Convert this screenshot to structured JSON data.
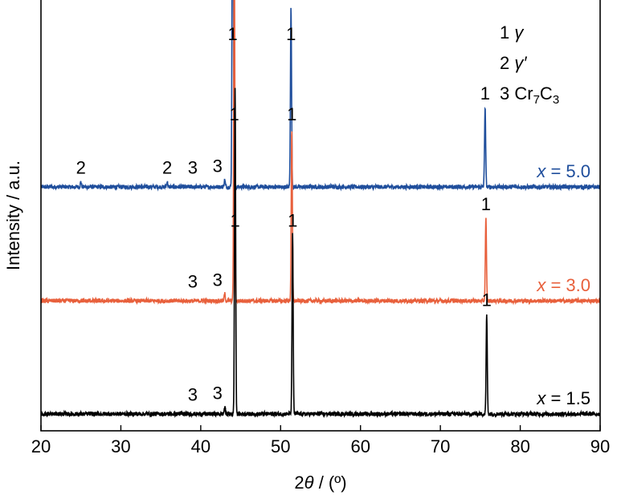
{
  "chart_data": {
    "type": "line",
    "xlabel": {
      "prefix": "2",
      "symbol": "θ",
      "suffix": " / (º)"
    },
    "ylabel": "Intensity / a.u.",
    "xlim": [
      20,
      90
    ],
    "xticks": [
      "20",
      "30",
      "40",
      "50",
      "60",
      "70",
      "80",
      "90"
    ],
    "legend": {
      "placement": "top-right",
      "entries": [
        {
          "num": "1",
          "sym": "γ",
          "prime": ""
        },
        {
          "num": "2",
          "sym": "γ",
          "prime": "′"
        },
        {
          "num": "3",
          "chem": [
            "Cr",
            "7",
            "C",
            "3"
          ]
        }
      ]
    },
    "series": [
      {
        "label": {
          "var": "x",
          "rest": " = 5.0"
        },
        "color": "#1f4e9c",
        "peaks": [
          {
            "x": 44.0,
            "h": 1.3
          },
          {
            "x": 51.3,
            "h": 0.52
          },
          {
            "x": 75.6,
            "h": 0.23
          },
          {
            "x": 25.0,
            "h": 0.015
          },
          {
            "x": 35.8,
            "h": 0.015
          },
          {
            "x": 43.0,
            "h": 0.02
          }
        ],
        "annotations": [
          {
            "x": 44.0,
            "text": "1",
            "peak_h": 1.18
          },
          {
            "x": 51.3,
            "text": "1",
            "peak_h": 0.52
          },
          {
            "x": 75.6,
            "text": "1",
            "peak_h": 0.23
          },
          {
            "x": 25.0,
            "text": "2",
            "peak_h": 0.015
          },
          {
            "x": 35.8,
            "text": "2",
            "peak_h": 0.015
          },
          {
            "x": 39.0,
            "text": "3",
            "peak_h": 0.015
          },
          {
            "x": 42.7,
            "text": "3",
            "peak_h": 0.02
          }
        ]
      },
      {
        "label": {
          "var": "x",
          "rest": " = 3.0"
        },
        "color": "#e8603c",
        "peaks": [
          {
            "x": 44.2,
            "h": 1.05
          },
          {
            "x": 51.4,
            "h": 0.5
          },
          {
            "x": 75.7,
            "h": 0.24
          },
          {
            "x": 43.0,
            "h": 0.02
          }
        ],
        "annotations": [
          {
            "x": 44.2,
            "text": "1",
            "peak_h": 0.5
          },
          {
            "x": 51.4,
            "text": "1",
            "peak_h": 0.5
          },
          {
            "x": 75.7,
            "text": "1",
            "peak_h": 0.24
          },
          {
            "x": 39.0,
            "text": "3",
            "peak_h": 0.015
          },
          {
            "x": 42.7,
            "text": "3",
            "peak_h": 0.02
          }
        ]
      },
      {
        "label": {
          "var": "x",
          "rest": " = 1.5"
        },
        "color": "#000000",
        "peaks": [
          {
            "x": 44.3,
            "h": 0.95
          },
          {
            "x": 51.5,
            "h": 0.52
          },
          {
            "x": 75.8,
            "h": 0.29
          },
          {
            "x": 43.0,
            "h": 0.02
          }
        ],
        "annotations": [
          {
            "x": 44.3,
            "text": "1",
            "peak_h": 0.52
          },
          {
            "x": 51.5,
            "text": "1",
            "peak_h": 0.52
          },
          {
            "x": 75.8,
            "text": "1",
            "peak_h": 0.29
          },
          {
            "x": 39.0,
            "text": "3",
            "peak_h": 0.015
          },
          {
            "x": 42.7,
            "text": "3",
            "peak_h": 0.02
          }
        ]
      }
    ]
  }
}
